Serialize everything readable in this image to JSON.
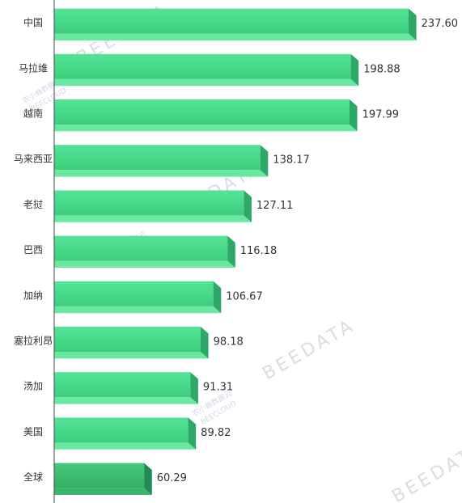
{
  "watermarks": {
    "main": "BEEDATA",
    "sub": "BEECLOUD",
    "cn": "农小蜂数据云"
  },
  "colors": {
    "bar_front": "#4fe08f",
    "bar_front_dark": "#38c777",
    "bar_top": "#7ff0b0",
    "bar_side": "#2ea866",
    "bar_highlight": "#3fbf74",
    "highlight_side": "#228a50",
    "axis": "#444444"
  },
  "chart_data": {
    "type": "bar",
    "orientation": "horizontal",
    "categories": [
      "中国",
      "马拉维",
      "越南",
      "马来西亚",
      "老挝",
      "巴西",
      "加纳",
      "塞拉利昂",
      "汤加",
      "美国",
      "全球"
    ],
    "values": [
      237.6,
      198.88,
      197.99,
      138.17,
      127.11,
      116.18,
      106.67,
      98.18,
      91.31,
      89.82,
      60.29
    ],
    "value_labels": [
      "237.60",
      "198.88",
      "197.99",
      "138.17",
      "127.11",
      "116.18",
      "106.67",
      "98.18",
      "91.31",
      "89.82",
      "60.29"
    ],
    "highlight_category": "全球",
    "xlim": [
      0,
      237.6
    ],
    "title": "",
    "xlabel": "",
    "ylabel": ""
  }
}
